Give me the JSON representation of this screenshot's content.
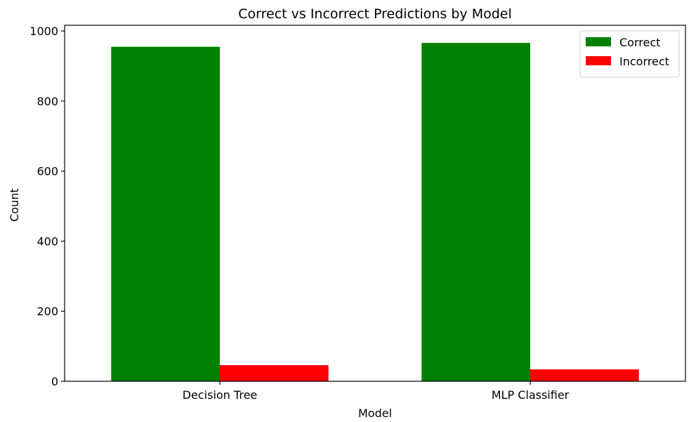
{
  "chart_data": {
    "type": "bar",
    "title": "Correct vs Incorrect Predictions by Model",
    "xlabel": "Model",
    "ylabel": "Count",
    "categories": [
      "Decision Tree",
      "MLP Classifier"
    ],
    "series": [
      {
        "name": "Correct",
        "color": "#008000",
        "values": [
          955,
          966
        ]
      },
      {
        "name": "Incorrect",
        "color": "#ff0000",
        "values": [
          46,
          34
        ]
      }
    ],
    "ylim": [
      0,
      1000
    ],
    "yticks": [
      0,
      200,
      400,
      600,
      800,
      1000
    ],
    "yticks_labels": [
      "0",
      "200",
      "400",
      "600",
      "800",
      "1000"
    ],
    "grid": false,
    "legend_position": "top-right"
  }
}
